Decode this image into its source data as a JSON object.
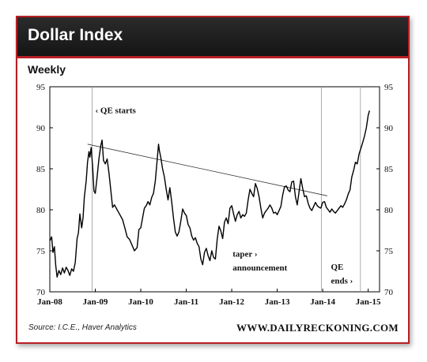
{
  "header": {
    "title": "Dollar Index",
    "subtitle": "Weekly"
  },
  "footer": {
    "source": "Source: I.C.E., Haver Analytics",
    "brand": "WWW.DAILYRECKONING.COM"
  },
  "colors": {
    "accent": "#b61f24",
    "header_bg": "#1e1e1e",
    "series": "#000000",
    "trendline": "#333333",
    "vline": "#999999"
  },
  "chart_data": {
    "type": "line",
    "title": "Dollar Index",
    "subtitle": "Weekly",
    "ylim": [
      70,
      95
    ],
    "y_ticks": [
      70,
      75,
      80,
      85,
      90,
      95
    ],
    "x_ticks": [
      "Jan-08",
      "Jan-09",
      "Jan-10",
      "Jan-11",
      "Jan-12",
      "Jan-13",
      "Jan-14",
      "Jan-15"
    ],
    "grid": false,
    "series": [
      {
        "values": [
          [
            2008.0,
            76.2
          ],
          [
            2008.04,
            76.7
          ],
          [
            2008.07,
            74.8
          ],
          [
            2008.1,
            75.5
          ],
          [
            2008.13,
            73.2
          ],
          [
            2008.16,
            71.8
          ],
          [
            2008.2,
            72.6
          ],
          [
            2008.24,
            72.1
          ],
          [
            2008.28,
            72.9
          ],
          [
            2008.32,
            72.3
          ],
          [
            2008.36,
            73.0
          ],
          [
            2008.4,
            72.6
          ],
          [
            2008.44,
            72.0
          ],
          [
            2008.48,
            72.8
          ],
          [
            2008.52,
            72.5
          ],
          [
            2008.56,
            73.6
          ],
          [
            2008.6,
            76.5
          ],
          [
            2008.63,
            77.2
          ],
          [
            2008.66,
            79.5
          ],
          [
            2008.7,
            77.8
          ],
          [
            2008.73,
            79.0
          ],
          [
            2008.76,
            81.6
          ],
          [
            2008.8,
            83.5
          ],
          [
            2008.83,
            85.8
          ],
          [
            2008.86,
            87.1
          ],
          [
            2008.88,
            86.4
          ],
          [
            2008.91,
            87.6
          ],
          [
            2008.94,
            85.3
          ],
          [
            2008.97,
            82.3
          ],
          [
            2009.0,
            82.0
          ],
          [
            2009.04,
            84.0
          ],
          [
            2009.08,
            86.2
          ],
          [
            2009.12,
            87.8
          ],
          [
            2009.15,
            88.5
          ],
          [
            2009.18,
            86.0
          ],
          [
            2009.22,
            85.6
          ],
          [
            2009.26,
            86.2
          ],
          [
            2009.3,
            84.5
          ],
          [
            2009.34,
            82.4
          ],
          [
            2009.38,
            80.3
          ],
          [
            2009.42,
            80.6
          ],
          [
            2009.46,
            80.2
          ],
          [
            2009.5,
            79.8
          ],
          [
            2009.55,
            79.3
          ],
          [
            2009.6,
            78.8
          ],
          [
            2009.65,
            77.8
          ],
          [
            2009.7,
            76.7
          ],
          [
            2009.75,
            76.4
          ],
          [
            2009.8,
            75.8
          ],
          [
            2009.86,
            75.0
          ],
          [
            2009.92,
            75.4
          ],
          [
            2009.96,
            77.6
          ],
          [
            2010.0,
            77.8
          ],
          [
            2010.04,
            79.0
          ],
          [
            2010.08,
            80.2
          ],
          [
            2010.12,
            80.5
          ],
          [
            2010.16,
            81.0
          ],
          [
            2010.2,
            80.6
          ],
          [
            2010.24,
            81.5
          ],
          [
            2010.28,
            82.0
          ],
          [
            2010.32,
            83.5
          ],
          [
            2010.36,
            86.0
          ],
          [
            2010.39,
            88.0
          ],
          [
            2010.41,
            87.2
          ],
          [
            2010.44,
            86.4
          ],
          [
            2010.48,
            85.0
          ],
          [
            2010.52,
            84.0
          ],
          [
            2010.56,
            82.5
          ],
          [
            2010.6,
            81.2
          ],
          [
            2010.64,
            82.7
          ],
          [
            2010.68,
            81.0
          ],
          [
            2010.72,
            79.0
          ],
          [
            2010.76,
            77.3
          ],
          [
            2010.8,
            76.8
          ],
          [
            2010.84,
            77.3
          ],
          [
            2010.88,
            78.6
          ],
          [
            2010.92,
            80.1
          ],
          [
            2010.96,
            79.6
          ],
          [
            2011.0,
            79.3
          ],
          [
            2011.04,
            78.2
          ],
          [
            2011.08,
            77.8
          ],
          [
            2011.12,
            76.8
          ],
          [
            2011.16,
            76.3
          ],
          [
            2011.2,
            76.6
          ],
          [
            2011.24,
            75.9
          ],
          [
            2011.28,
            75.5
          ],
          [
            2011.32,
            74.0
          ],
          [
            2011.36,
            73.3
          ],
          [
            2011.4,
            74.8
          ],
          [
            2011.44,
            75.3
          ],
          [
            2011.48,
            74.4
          ],
          [
            2011.52,
            73.8
          ],
          [
            2011.56,
            75.0
          ],
          [
            2011.6,
            74.2
          ],
          [
            2011.64,
            74.0
          ],
          [
            2011.68,
            76.4
          ],
          [
            2011.72,
            78.0
          ],
          [
            2011.76,
            77.4
          ],
          [
            2011.8,
            76.5
          ],
          [
            2011.84,
            78.5
          ],
          [
            2011.88,
            79.0
          ],
          [
            2011.92,
            78.3
          ],
          [
            2011.96,
            80.2
          ],
          [
            2012.0,
            80.5
          ],
          [
            2012.04,
            79.5
          ],
          [
            2012.08,
            78.6
          ],
          [
            2012.12,
            79.4
          ],
          [
            2012.16,
            79.8
          ],
          [
            2012.2,
            79.0
          ],
          [
            2012.24,
            79.4
          ],
          [
            2012.28,
            79.2
          ],
          [
            2012.32,
            79.6
          ],
          [
            2012.36,
            81.2
          ],
          [
            2012.4,
            82.5
          ],
          [
            2012.44,
            82.0
          ],
          [
            2012.48,
            81.6
          ],
          [
            2012.52,
            83.2
          ],
          [
            2012.56,
            82.6
          ],
          [
            2012.6,
            81.6
          ],
          [
            2012.64,
            80.2
          ],
          [
            2012.68,
            79.0
          ],
          [
            2012.72,
            79.6
          ],
          [
            2012.76,
            79.9
          ],
          [
            2012.8,
            80.2
          ],
          [
            2012.84,
            80.6
          ],
          [
            2012.88,
            80.2
          ],
          [
            2012.92,
            79.6
          ],
          [
            2012.96,
            79.7
          ],
          [
            2013.0,
            79.4
          ],
          [
            2013.04,
            79.9
          ],
          [
            2013.08,
            80.4
          ],
          [
            2013.12,
            81.8
          ],
          [
            2013.16,
            82.8
          ],
          [
            2013.2,
            82.9
          ],
          [
            2013.24,
            82.4
          ],
          [
            2013.28,
            82.2
          ],
          [
            2013.32,
            83.4
          ],
          [
            2013.36,
            83.5
          ],
          [
            2013.4,
            81.6
          ],
          [
            2013.44,
            80.6
          ],
          [
            2013.48,
            82.2
          ],
          [
            2013.52,
            83.8
          ],
          [
            2013.56,
            82.6
          ],
          [
            2013.6,
            81.6
          ],
          [
            2013.64,
            81.7
          ],
          [
            2013.68,
            80.8
          ],
          [
            2013.72,
            80.2
          ],
          [
            2013.76,
            79.9
          ],
          [
            2013.8,
            80.4
          ],
          [
            2013.84,
            80.9
          ],
          [
            2013.88,
            80.5
          ],
          [
            2013.92,
            80.3
          ],
          [
            2013.96,
            80.2
          ],
          [
            2014.0,
            80.9
          ],
          [
            2014.04,
            81.0
          ],
          [
            2014.08,
            80.3
          ],
          [
            2014.12,
            80.0
          ],
          [
            2014.16,
            79.7
          ],
          [
            2014.2,
            80.1
          ],
          [
            2014.24,
            79.8
          ],
          [
            2014.28,
            79.6
          ],
          [
            2014.32,
            79.9
          ],
          [
            2014.36,
            80.2
          ],
          [
            2014.4,
            80.5
          ],
          [
            2014.44,
            80.3
          ],
          [
            2014.48,
            80.7
          ],
          [
            2014.52,
            81.2
          ],
          [
            2014.56,
            81.9
          ],
          [
            2014.6,
            82.4
          ],
          [
            2014.64,
            84.0
          ],
          [
            2014.68,
            84.8
          ],
          [
            2014.72,
            85.8
          ],
          [
            2014.76,
            85.6
          ],
          [
            2014.8,
            86.8
          ],
          [
            2014.84,
            87.5
          ],
          [
            2014.88,
            88.2
          ],
          [
            2014.92,
            89.0
          ],
          [
            2014.96,
            90.0
          ],
          [
            2015.0,
            91.5
          ],
          [
            2015.03,
            92.1
          ]
        ]
      }
    ],
    "trendline": {
      "from": [
        2008.83,
        88.0
      ],
      "to": [
        2014.1,
        81.7
      ]
    },
    "event_lines": [
      2008.93,
      2013.97,
      2014.83
    ],
    "annotations": {
      "qe_starts": "QE starts",
      "taper_line1": "taper",
      "taper_line2": "announcement",
      "qe_ends_line1": "QE",
      "qe_ends_line2": "ends"
    }
  }
}
